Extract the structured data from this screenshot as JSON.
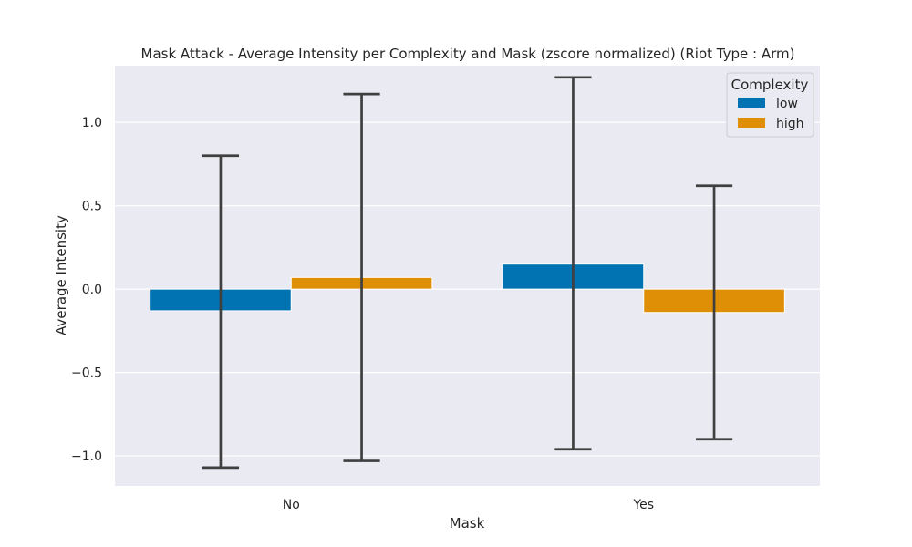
{
  "chart_data": {
    "type": "bar",
    "title": "Mask Attack - Average Intensity per Complexity and Mask (zscore normalized) (Riot Type : Arm)",
    "xlabel": "Mask",
    "ylabel": "Average Intensity",
    "categories": [
      "No",
      "Yes"
    ],
    "ylim": [
      -1.18,
      1.34
    ],
    "yticks": [
      1.0,
      0.5,
      0.0,
      -0.5,
      -1.0
    ],
    "ytick_labels": [
      "1.0",
      "0.5",
      "0.0",
      "−0.5",
      "−1.0"
    ],
    "grid": true,
    "legend": {
      "title": "Complexity",
      "placement": "top-right"
    },
    "series": [
      {
        "name": "low",
        "color": "#0173b2",
        "values": [
          -0.13,
          0.15
        ],
        "err_low": [
          -1.07,
          -0.96
        ],
        "err_high": [
          0.8,
          1.27
        ]
      },
      {
        "name": "high",
        "color": "#de8f05",
        "values": [
          0.07,
          -0.14
        ],
        "err_low": [
          -1.03,
          -0.9
        ],
        "err_high": [
          1.17,
          0.62
        ]
      }
    ]
  },
  "colors": {
    "plot_bg": "#eaeaf2",
    "grid": "#ffffff",
    "errorbar": "#3f3f3f",
    "text": "#262626"
  }
}
